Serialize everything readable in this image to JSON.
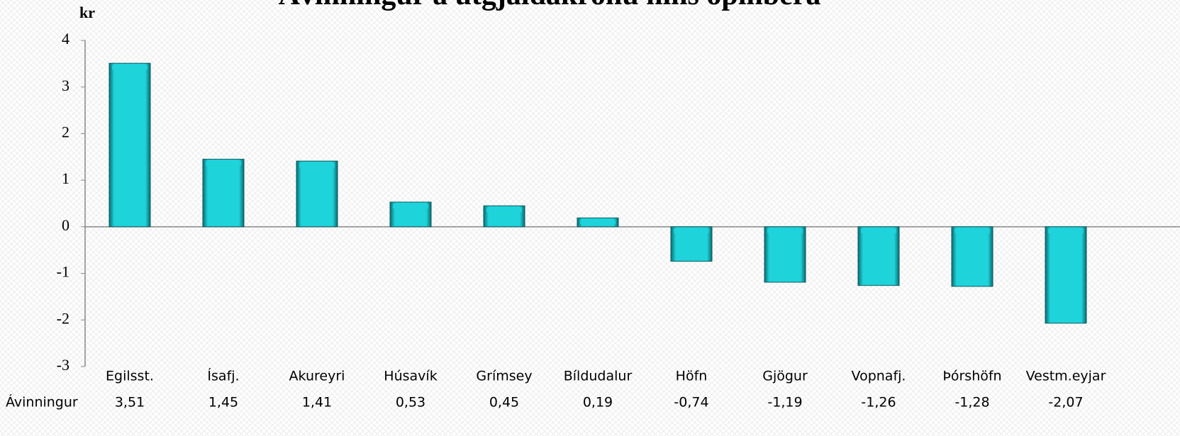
{
  "chart_data": {
    "type": "bar",
    "title": "Ávinningur á útgjaldakrónu hins opinbera",
    "y_label": "kr",
    "series_name": "Ávinningur",
    "categories": [
      "Egilsst.",
      "Ísafj.",
      "Akureyri",
      "Húsavík",
      "Grímsey",
      "Bíldudalur",
      "Höfn",
      "Gjögur",
      "Vopnafj.",
      "Þórshöfn",
      "Vestm.eyjar"
    ],
    "values": [
      3.51,
      1.45,
      1.41,
      0.53,
      0.45,
      0.19,
      -0.74,
      -1.19,
      -1.26,
      -1.28,
      -2.07
    ],
    "value_labels": [
      "3,51",
      "1,45",
      "1,41",
      "0,53",
      "0,45",
      "0,19",
      "-0,74",
      "-1,19",
      "-1,26",
      "-1,28",
      "-2,07"
    ],
    "color": "#1ed3da",
    "ylim": [
      -3,
      4
    ],
    "yticks": [
      -3,
      -2,
      -1,
      0,
      1,
      2,
      3,
      4
    ],
    "grid": false
  }
}
